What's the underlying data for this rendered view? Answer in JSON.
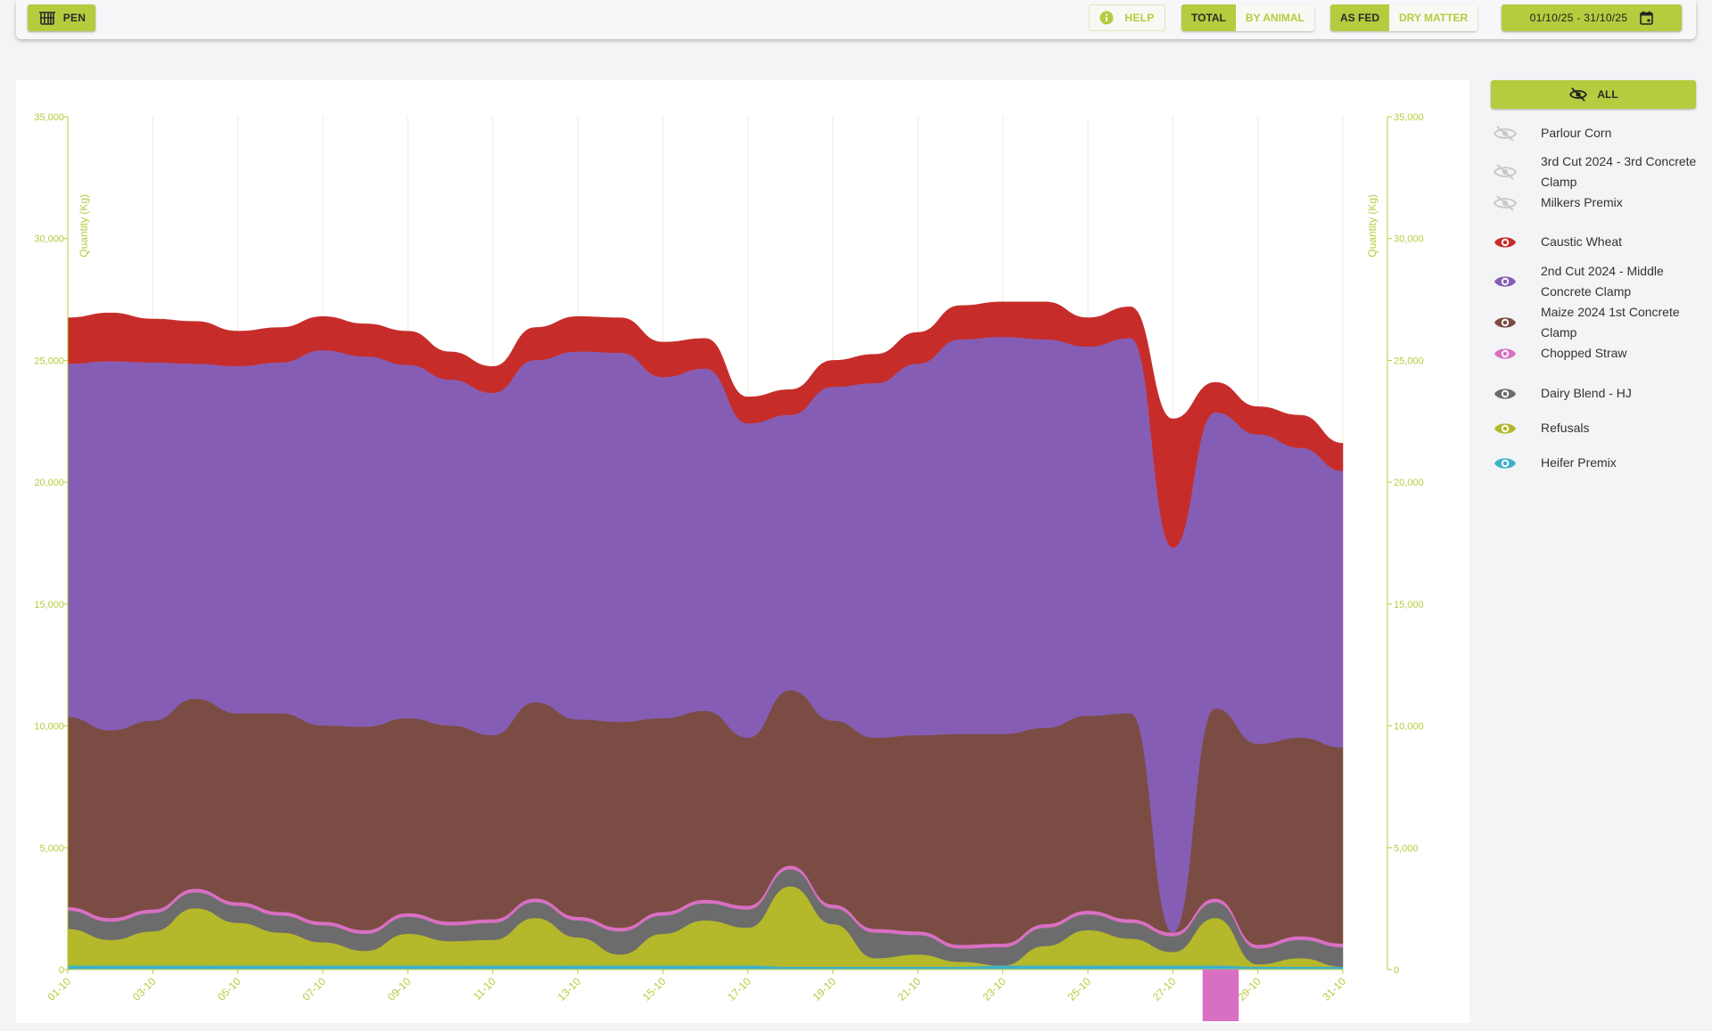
{
  "toolbar": {
    "pen_label": "PEN",
    "help_label": "HELP",
    "total_label": "TOTAL",
    "by_animal_label": "BY ANIMAL",
    "as_fed_label": "AS FED",
    "dry_matter_label": "DRY MATTER",
    "date_range": "01/10/25 - 31/10/25",
    "accent_color": "#b6cb3e"
  },
  "legend": {
    "all_label": "ALL",
    "items": [
      {
        "label": "Parlour Corn",
        "visible": false,
        "color": "#c9c9c9",
        "icon": "eye-off-icon"
      },
      {
        "label": "3rd Cut 2024 - 3rd Concrete Clamp",
        "visible": false,
        "color": "#c9c9c9",
        "icon": "eye-off-icon"
      },
      {
        "label": "Milkers Premix",
        "visible": false,
        "color": "#c9c9c9",
        "icon": "eye-off-icon"
      },
      {
        "label": "Caustic Wheat",
        "visible": true,
        "color": "#c62d2a",
        "icon": "eye-icon"
      },
      {
        "label": "2nd Cut 2024 - Middle Concrete Clamp",
        "visible": true,
        "color": "#865db4",
        "icon": "eye-icon"
      },
      {
        "label": "Maize 2024 1st Concrete Clamp",
        "visible": true,
        "color": "#7b4c43",
        "icon": "eye-icon"
      },
      {
        "label": "Chopped Straw",
        "visible": true,
        "color": "#d96fc3",
        "icon": "eye-icon"
      },
      {
        "label": "Dairy Blend - HJ",
        "visible": true,
        "color": "#6c6c6c",
        "icon": "eye-icon"
      },
      {
        "label": "Refusals",
        "visible": true,
        "color": "#b4b82a",
        "icon": "eye-icon"
      },
      {
        "label": "Heifer Premix",
        "visible": true,
        "color": "#3fb0c9",
        "icon": "eye-icon"
      }
    ]
  },
  "chart_data": {
    "type": "area",
    "stacked": true,
    "ylabel": "Quantity (Kg)",
    "ylim": [
      0,
      35000
    ],
    "yticks": [
      "0",
      "5,000",
      "10,000",
      "15,000",
      "20,000",
      "25,000",
      "30,000",
      "35,000"
    ],
    "x_tick_labels": [
      "01-10",
      "03-10",
      "05-10",
      "07-10",
      "09-10",
      "11-10",
      "13-10",
      "15-10",
      "17-10",
      "19-10",
      "21-10",
      "23-10",
      "25-10",
      "27-10",
      "29-10",
      "31-10"
    ],
    "x": [
      "01-10",
      "02-10",
      "03-10",
      "04-10",
      "05-10",
      "06-10",
      "07-10",
      "08-10",
      "09-10",
      "10-10",
      "11-10",
      "12-10",
      "13-10",
      "14-10",
      "15-10",
      "16-10",
      "17-10",
      "18-10",
      "19-10",
      "20-10",
      "21-10",
      "22-10",
      "23-10",
      "24-10",
      "25-10",
      "26-10",
      "27-10",
      "28-10",
      "29-10",
      "30-10",
      "31-10"
    ],
    "series": [
      {
        "name": "Heifer Premix",
        "color": "#3fb0c9",
        "values": [
          150,
          150,
          150,
          150,
          150,
          150,
          150,
          150,
          150,
          150,
          150,
          150,
          150,
          150,
          150,
          150,
          150,
          100,
          100,
          100,
          100,
          100,
          150,
          150,
          150,
          150,
          150,
          150,
          100,
          100,
          100
        ]
      },
      {
        "name": "Refusals",
        "color": "#b4b82a",
        "values": [
          1500,
          1050,
          1400,
          2350,
          1750,
          1350,
          950,
          600,
          1300,
          1000,
          1050,
          1950,
          1150,
          450,
          1300,
          1850,
          1550,
          3300,
          1750,
          350,
          500,
          200,
          0,
          800,
          1450,
          1100,
          550,
          1950,
          100,
          350,
          0
        ]
      },
      {
        "name": "Dairy Blend - HJ",
        "color": "#6c6c6c",
        "values": [
          750,
          750,
          750,
          650,
          700,
          700,
          700,
          700,
          700,
          650,
          700,
          650,
          700,
          950,
          750,
          700,
          750,
          700,
          650,
          1050,
          800,
          550,
          750,
          750,
          650,
          650,
          650,
          650,
          650,
          750,
          800
        ]
      },
      {
        "name": "Chopped Straw",
        "color": "#d96fc3",
        "values": [
          150,
          150,
          150,
          150,
          150,
          150,
          150,
          150,
          150,
          150,
          150,
          150,
          150,
          150,
          150,
          150,
          150,
          150,
          150,
          150,
          150,
          150,
          150,
          150,
          150,
          150,
          150,
          150,
          150,
          150,
          150
        ]
      },
      {
        "name": "Maize 2024 1st Concrete Clamp",
        "color": "#7b4c43",
        "values": [
          7800,
          7700,
          7750,
          7800,
          7750,
          8150,
          8050,
          8350,
          8000,
          8050,
          7550,
          8050,
          8100,
          8450,
          7950,
          7750,
          6900,
          7200,
          7550,
          7850,
          8050,
          8650,
          8600,
          8050,
          8000,
          8450,
          0,
          7800,
          8250,
          8150,
          8050
        ]
      },
      {
        "name": "2nd Cut 2024 - Middle Concrete Clamp",
        "color": "#865db4",
        "values": [
          14500,
          15150,
          14700,
          13750,
          14250,
          14400,
          15400,
          15200,
          14500,
          14200,
          14050,
          14050,
          15100,
          15150,
          14000,
          14050,
          12900,
          11300,
          13700,
          14550,
          15250,
          16200,
          16300,
          15950,
          15150,
          15400,
          15800,
          12150,
          12700,
          11900,
          11350
        ]
      },
      {
        "name": "Caustic Wheat",
        "color": "#c62d2a",
        "values": [
          1900,
          2000,
          1800,
          1750,
          1450,
          1450,
          1400,
          1350,
          1400,
          1150,
          1100,
          1350,
          1450,
          1450,
          1450,
          1250,
          1100,
          1050,
          1100,
          1200,
          1300,
          1400,
          1450,
          1550,
          1200,
          1300,
          5300,
          1250,
          1150,
          1350,
          1150
        ]
      }
    ]
  }
}
